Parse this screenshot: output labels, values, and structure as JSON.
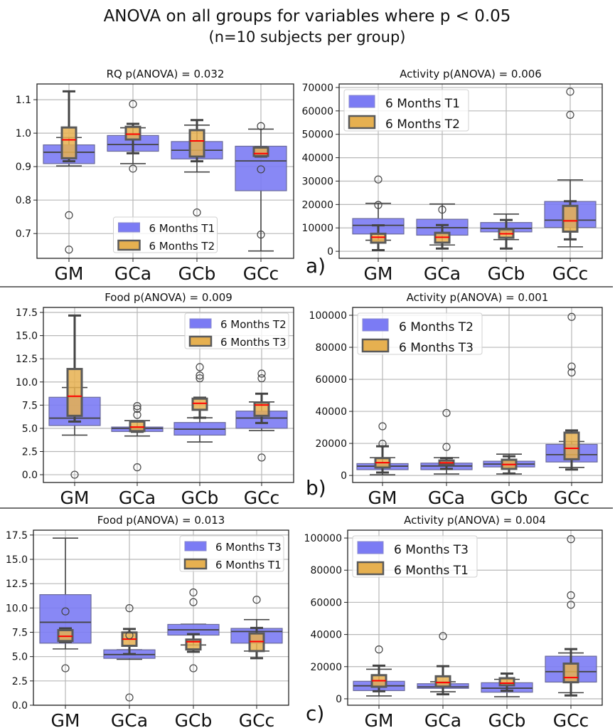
{
  "figure": {
    "title": "ANOVA on all groups for variables where p < 0.05",
    "subtitle": "(n=10 subjects per group)"
  },
  "colors": {
    "series_a": "#7b7bf4",
    "series_b": "#e6b050",
    "median_b": "#ff0000",
    "edge": "#444444"
  },
  "chart_data": [
    {
      "type": "box",
      "title": "RQ p(ANOVA) = 0.032",
      "categories": [
        "GM",
        "GCa",
        "GCb",
        "GCc"
      ],
      "ylim": [
        0.626,
        1.147
      ],
      "yticks": [
        0.7,
        0.8,
        0.9,
        1.0,
        1.1
      ],
      "ytick_labels": [
        "0.7",
        "0.8",
        "0.9",
        "1.0",
        "1.1"
      ],
      "legend": "lower-center",
      "grid": true,
      "panel_label": "",
      "series": [
        {
          "name": "6 Months T1",
          "groups": [
            {
              "whislo": 0.902,
              "q1": 0.909,
              "med": 0.943,
              "q3": 0.965,
              "whishi": 0.987,
              "fliers": [
                0.755,
                0.652
              ]
            },
            {
              "whislo": 0.909,
              "q1": 0.946,
              "med": 0.966,
              "q3": 0.993,
              "whishi": 1.016,
              "fliers": [
                1.087,
                0.894
              ]
            },
            {
              "whislo": 0.884,
              "q1": 0.923,
              "med": 0.949,
              "q3": 0.975,
              "whishi": 1.024,
              "fliers": [
                0.763
              ]
            },
            {
              "whislo": 0.648,
              "q1": 0.828,
              "med": 0.917,
              "q3": 0.961,
              "whishi": 1.012,
              "fliers": []
            }
          ]
        },
        {
          "name": "6 Months T2",
          "groups": [
            {
              "whislo": 0.916,
              "q1": 0.925,
              "med": 0.98,
              "q3": 1.017,
              "whishi": 1.125,
              "fliers": []
            },
            {
              "whislo": 0.94,
              "q1": 0.981,
              "med": 0.997,
              "q3": 1.019,
              "whishi": 1.028,
              "fliers": []
            },
            {
              "whislo": 0.916,
              "q1": 0.93,
              "med": 0.977,
              "q3": 1.009,
              "whishi": 1.039,
              "fliers": []
            },
            {
              "whislo": 0.93,
              "q1": 0.932,
              "med": 0.939,
              "q3": 0.957,
              "whishi": 0.958,
              "fliers": [
                1.021,
                0.892,
                0.697
              ]
            }
          ]
        }
      ]
    },
    {
      "type": "box",
      "title": "Activity p(ANOVA) = 0.006",
      "categories": [
        "GM",
        "GCa",
        "GCb",
        "GCc"
      ],
      "ylim": [
        -3000,
        71500
      ],
      "yticks": [
        0,
        10000,
        20000,
        30000,
        40000,
        50000,
        60000,
        70000
      ],
      "ytick_labels": [
        "0",
        "10000",
        "20000",
        "30000",
        "40000",
        "50000",
        "60000",
        "70000"
      ],
      "legend": "upper-left",
      "grid": true,
      "panel_label": "a)",
      "series": [
        {
          "name": "6 Months T1",
          "groups": [
            {
              "whislo": 4750,
              "q1": 7400,
              "med": 11100,
              "q3": 14000,
              "whishi": 20500,
              "fliers": [
                30700
              ]
            },
            {
              "whislo": 2700,
              "q1": 6900,
              "med": 10100,
              "q3": 13700,
              "whishi": 20200,
              "fliers": []
            },
            {
              "whislo": 5000,
              "q1": 8300,
              "med": 9800,
              "q3": 12300,
              "whishi": 15900,
              "fliers": []
            },
            {
              "whislo": 1900,
              "q1": 10200,
              "med": 13300,
              "q3": 21300,
              "whishi": 30500,
              "fliers": []
            }
          ]
        },
        {
          "name": "6 Months T2",
          "groups": [
            {
              "whislo": 500,
              "q1": 3700,
              "med": 6000,
              "q3": 7500,
              "whishi": 11100,
              "fliers": [
                19800
              ]
            },
            {
              "whislo": 1200,
              "q1": 3700,
              "med": 6000,
              "q3": 7900,
              "whishi": 11200,
              "fliers": [
                17800
              ]
            },
            {
              "whislo": 1200,
              "q1": 5800,
              "med": 7500,
              "q3": 9400,
              "whishi": 13400,
              "fliers": []
            },
            {
              "whislo": 5100,
              "q1": 8400,
              "med": 13000,
              "q3": 19400,
              "whishi": 21400,
              "fliers": [
                68200,
                58300
              ]
            }
          ]
        }
      ]
    },
    {
      "type": "box",
      "title": "Food p(ANOVA) = 0.009",
      "categories": [
        "GM",
        "GCa",
        "GCb",
        "GCc"
      ],
      "ylim": [
        -0.84,
        18.04
      ],
      "yticks": [
        0,
        2.5,
        5,
        7.5,
        10,
        12.5,
        15,
        17.5
      ],
      "ytick_labels": [
        "0.0",
        "2.5",
        "5.0",
        "7.5",
        "10.0",
        "12.5",
        "15.0",
        "17.5"
      ],
      "legend": "upper-right",
      "grid": true,
      "panel_label": "",
      "series": [
        {
          "name": "6 Months T2",
          "groups": [
            {
              "whislo": 4.27,
              "q1": 5.3,
              "med": 6.1,
              "q3": 8.35,
              "whishi": 9.4,
              "fliers": [
                0.0
              ]
            },
            {
              "whislo": 4.17,
              "q1": 4.66,
              "med": 5.0,
              "q3": 5.14,
              "whishi": 5.83,
              "fliers": [
                0.8
              ]
            },
            {
              "whislo": 3.53,
              "q1": 4.27,
              "med": 4.91,
              "q3": 5.63,
              "whishi": 6.14,
              "fliers": []
            },
            {
              "whislo": 4.76,
              "q1": 5.01,
              "med": 6.11,
              "q3": 6.86,
              "whishi": 7.85,
              "fliers": [
                1.85
              ]
            }
          ]
        },
        {
          "name": "6 Months T3",
          "groups": [
            {
              "whislo": 5.73,
              "q1": 6.35,
              "med": 8.47,
              "q3": 11.4,
              "whishi": 17.17,
              "fliers": []
            },
            {
              "whislo": 4.63,
              "q1": 4.7,
              "med": 5.14,
              "q3": 5.73,
              "whishi": 5.78,
              "fliers": [
                7.4,
                7.1,
                6.45
              ]
            },
            {
              "whislo": 6.14,
              "q1": 7.0,
              "med": 7.7,
              "q3": 8.2,
              "whishi": 8.3,
              "fliers": [
                11.6,
                10.7,
                10.4
              ]
            },
            {
              "whislo": 5.58,
              "q1": 6.35,
              "med": 7.52,
              "q3": 7.78,
              "whishi": 8.73,
              "fliers": [
                10.9,
                10.4
              ]
            }
          ]
        }
      ]
    },
    {
      "type": "box",
      "title": "Activity p(ANOVA) = 0.001",
      "categories": [
        "GM",
        "GCa",
        "GCb",
        "GCc"
      ],
      "ylim": [
        -4400,
        104900
      ],
      "yticks": [
        0,
        20000,
        40000,
        60000,
        80000,
        100000
      ],
      "ytick_labels": [
        "0",
        "20000",
        "40000",
        "60000",
        "80000",
        "100000"
      ],
      "legend": "upper-left",
      "grid": true,
      "panel_label": "b)",
      "series": [
        {
          "name": "6 Months T2",
          "groups": [
            {
              "whislo": 400,
              "q1": 3600,
              "med": 5800,
              "q3": 7400,
              "whishi": 11100,
              "fliers": [
                19800
              ]
            },
            {
              "whislo": 900,
              "q1": 3600,
              "med": 5900,
              "q3": 7700,
              "whishi": 11100,
              "fliers": [
                39000,
                17800
              ]
            },
            {
              "whislo": 900,
              "q1": 5300,
              "med": 7100,
              "q3": 8900,
              "whishi": 13300,
              "fliers": []
            },
            {
              "whislo": 5000,
              "q1": 8400,
              "med": 13000,
              "q3": 19400,
              "whishi": 21200,
              "fliers": []
            }
          ]
        },
        {
          "name": "6 Months T3",
          "groups": [
            {
              "whislo": 1800,
              "q1": 4900,
              "med": 8000,
              "q3": 10800,
              "whishi": 18200,
              "fliers": [
                30700
              ]
            },
            {
              "whislo": 4100,
              "q1": 6800,
              "med": 7900,
              "q3": 9300,
              "whishi": 10800,
              "fliers": []
            },
            {
              "whislo": 1200,
              "q1": 4100,
              "med": 6800,
              "q3": 9800,
              "whishi": 12000,
              "fliers": []
            },
            {
              "whislo": 3700,
              "q1": 10100,
              "med": 16900,
              "q3": 26700,
              "whishi": 28100,
              "fliers": [
                99000,
                68000,
                64300
              ]
            }
          ]
        }
      ]
    },
    {
      "type": "box",
      "title": "Food p(ANOVA) = 0.013",
      "categories": [
        "GM",
        "GCa",
        "GCb",
        "GCc"
      ],
      "ylim": [
        0,
        18.0
      ],
      "yticks": [
        0,
        2.5,
        5,
        7.5,
        10,
        12.5,
        15,
        17.5
      ],
      "ytick_labels": [
        "0.0",
        "2.5",
        "5.0",
        "7.5",
        "10.0",
        "12.5",
        "15.0",
        "17.5"
      ],
      "legend": "upper-right",
      "grid": true,
      "panel_label": "",
      "series": [
        {
          "name": "6 Months T3",
          "groups": [
            {
              "whislo": 5.79,
              "q1": 6.38,
              "med": 8.53,
              "q3": 11.37,
              "whishi": 17.18,
              "fliers": []
            },
            {
              "whislo": 4.72,
              "q1": 4.82,
              "med": 5.21,
              "q3": 5.7,
              "whishi": 5.7,
              "fliers": []
            },
            {
              "whislo": 6.2,
              "q1": 7.21,
              "med": 7.75,
              "q3": 8.31,
              "whishi": 8.33,
              "fliers": [
                11.6,
                10.6,
                3.8
              ]
            },
            {
              "whislo": 5.57,
              "q1": 6.38,
              "med": 7.58,
              "q3": 7.9,
              "whishi": 8.8,
              "fliers": [
                10.85
              ]
            }
          ]
        },
        {
          "name": "6 Months T1",
          "groups": [
            {
              "whislo": 6.5,
              "q1": 6.6,
              "med": 7.09,
              "q3": 7.72,
              "whishi": 7.9,
              "fliers": [
                9.65,
                3.8
              ]
            },
            {
              "whislo": 5.26,
              "q1": 6.11,
              "med": 6.8,
              "q3": 7.48,
              "whishi": 7.84,
              "fliers": [
                9.98,
                7.2,
                0.8
              ]
            },
            {
              "whislo": 5.5,
              "q1": 5.74,
              "med": 6.53,
              "q3": 6.75,
              "whishi": 7.31,
              "fliers": []
            },
            {
              "whislo": 4.84,
              "q1": 5.57,
              "med": 6.55,
              "q3": 7.38,
              "whishi": 7.95,
              "fliers": []
            }
          ]
        }
      ]
    },
    {
      "type": "box",
      "title": "Activity p(ANOVA) = 0.004",
      "categories": [
        "GM",
        "GCa",
        "GCb",
        "GCc"
      ],
      "ylim": [
        -4000,
        104900
      ],
      "yticks": [
        0,
        20000,
        40000,
        60000,
        80000,
        100000
      ],
      "ytick_labels": [
        "0",
        "20000",
        "40000",
        "60000",
        "80000",
        "100000"
      ],
      "legend": "upper-left",
      "grid": true,
      "panel_label": "c)",
      "series": [
        {
          "name": "6 Months T3",
          "groups": [
            {
              "whislo": 1800,
              "q1": 5100,
              "med": 8100,
              "q3": 10900,
              "whishi": 18400,
              "fliers": []
            },
            {
              "whislo": 4400,
              "q1": 6500,
              "med": 7400,
              "q3": 9400,
              "whishi": 10600,
              "fliers": []
            },
            {
              "whislo": 1300,
              "q1": 4100,
              "med": 6600,
              "q3": 10000,
              "whishi": 12100,
              "fliers": []
            },
            {
              "whislo": 3800,
              "q1": 10400,
              "med": 16900,
              "q3": 26500,
              "whishi": 28500,
              "fliers": []
            }
          ]
        },
        {
          "name": "6 Months T1",
          "groups": [
            {
              "whislo": 4700,
              "q1": 7500,
              "med": 11300,
              "q3": 14700,
              "whishi": 20600,
              "fliers": [
                30700
              ]
            },
            {
              "whislo": 2800,
              "q1": 7600,
              "med": 10100,
              "q3": 14000,
              "whishi": 20300,
              "fliers": [
                39000
              ]
            },
            {
              "whislo": 5000,
              "q1": 8400,
              "med": 9700,
              "q3": 12800,
              "whishi": 15700,
              "fliers": []
            },
            {
              "whislo": 2100,
              "q1": 10300,
              "med": 13200,
              "q3": 21900,
              "whishi": 30900,
              "fliers": [
                99300,
                64400,
                58500
              ]
            }
          ]
        }
      ]
    }
  ]
}
